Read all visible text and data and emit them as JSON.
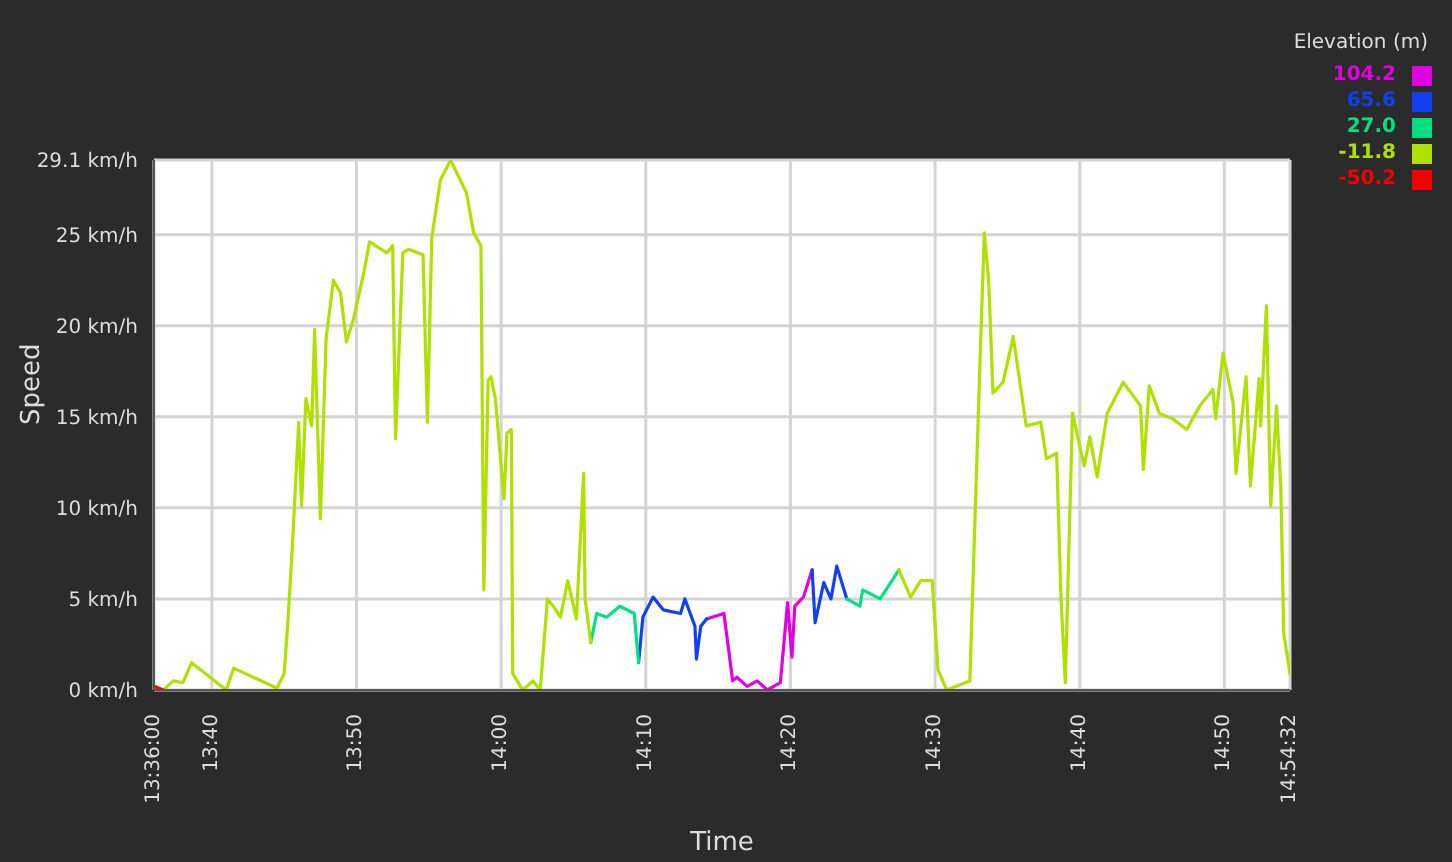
{
  "chart_data": {
    "type": "line",
    "xlabel": "Time",
    "ylabel": "Speed",
    "legend_title": "Elevation (m)",
    "legend": "top right",
    "grid": true,
    "line_style": "solid",
    "xlim": [
      13.6,
      14.9089
    ],
    "xticks": [
      {
        "value": 13.6,
        "label": "13:36:00"
      },
      {
        "value": 13.6667,
        "label": "13:40"
      },
      {
        "value": 13.8333,
        "label": "13:50"
      },
      {
        "value": 14,
        "label": "14:00"
      },
      {
        "value": 14.1667,
        "label": "14:10"
      },
      {
        "value": 14.3333,
        "label": "14:20"
      },
      {
        "value": 14.5,
        "label": "14:30"
      },
      {
        "value": 14.6667,
        "label": "14:40"
      },
      {
        "value": 14.8333,
        "label": "14:50"
      },
      {
        "value": 14.9089,
        "label": "14:54:32"
      }
    ],
    "ylim": [
      0,
      29.1
    ],
    "yticks": [
      {
        "value": 0,
        "label": "0 km/h"
      },
      {
        "value": 5,
        "label": "5 km/h"
      },
      {
        "value": 10,
        "label": "10 km/h"
      },
      {
        "value": 15,
        "label": "15 km/h"
      },
      {
        "value": 20,
        "label": "20 km/h"
      },
      {
        "value": 25,
        "label": "25 km/h"
      },
      {
        "value": 29.1,
        "label": "29.1 km/h"
      }
    ],
    "series": [
      {
        "name": "104.2",
        "color": "#e000e0",
        "x": [
          14.2367,
          14.2567,
          14.2667,
          14.2717,
          14.2833,
          14.295,
          14.3067,
          14.3217,
          14.33,
          14.335,
          14.3383,
          14.3483,
          14.3583
        ],
        "values": [
          3.9,
          4.2,
          0.5,
          0.7,
          0.2,
          0.5,
          0,
          0.4,
          4.8,
          1.8,
          4.6,
          5.1,
          6.6
        ]
      },
      {
        "name": "65.6",
        "color": "#1040f0",
        "x": [
          14.1583,
          14.1633,
          14.175,
          14.1867,
          14.2067,
          14.2117,
          14.2233,
          14.225,
          14.23,
          14.2367,
          14.3,
          14.3583,
          14.3617,
          14.3717,
          14.38,
          14.3867,
          14.3983
        ],
        "values": [
          1.5,
          4,
          5.1,
          4.4,
          4.2,
          5,
          3.5,
          1.7,
          3.5,
          3.9,
          null,
          6.6,
          3.7,
          5.9,
          5,
          6.8,
          5
        ]
      },
      {
        "name": "27.0",
        "color": "#00e080",
        "x": [
          14.1033,
          14.11,
          14.1217,
          14.1367,
          14.1533,
          14.1583,
          14.3,
          14.3983,
          14.4133,
          14.4167,
          14.4367,
          14.4583
        ],
        "values": [
          2.6,
          4.2,
          4,
          4.6,
          4.2,
          1.5,
          null,
          5,
          4.6,
          5.5,
          5,
          6.6
        ]
      },
      {
        "name": "-11.8",
        "color": "#b0e000",
        "x": [
          13.6108,
          13.6223,
          13.6333,
          13.6433,
          13.6833,
          13.6917,
          13.7417,
          13.75,
          13.7545,
          13.76,
          13.7667,
          13.77,
          13.775,
          13.7817,
          13.785,
          13.7917,
          13.7983,
          13.8067,
          13.815,
          13.8217,
          13.83,
          13.8417,
          13.8483,
          13.8683,
          13.875,
          13.8783,
          13.8867,
          13.8933,
          13.91,
          13.915,
          13.92,
          13.93,
          13.9417,
          13.96,
          13.9683,
          13.9767,
          13.98,
          13.985,
          13.9883,
          13.9933,
          14.0033,
          14.0067,
          14.0117,
          14.0133,
          14.025,
          14.0367,
          14.045,
          14.0533,
          14.06,
          14.0683,
          14.0767,
          14.0867,
          14.095,
          14.0967,
          14.1033,
          14.3,
          14.4583,
          14.4717,
          14.4833,
          14.4967,
          14.5033,
          14.5133,
          14.54,
          14.5517,
          14.5567,
          14.5617,
          14.5667,
          14.5783,
          14.59,
          14.605,
          14.6217,
          14.6283,
          14.64,
          14.645,
          14.65,
          14.6583,
          14.6717,
          14.6783,
          14.6867,
          14.6983,
          14.7167,
          14.7367,
          14.74,
          14.7467,
          14.7583,
          14.7733,
          14.79,
          14.805,
          14.82,
          14.8233,
          14.8317,
          14.8433,
          14.8467,
          14.8583,
          14.8633,
          14.8733,
          14.875,
          14.8817,
          14.8867,
          14.8933,
          14.8983,
          14.9017,
          14.9089
        ],
        "values": [
          0,
          0.5,
          0.4,
          1.5,
          0,
          1.2,
          0.1,
          0.9,
          3.9,
          8.4,
          14.7,
          10.1,
          16,
          14.5,
          19.8,
          9.4,
          19.3,
          22.5,
          21.8,
          19.1,
          20.4,
          22.9,
          24.6,
          24,
          24.4,
          13.8,
          24,
          24.2,
          23.9,
          14.7,
          24.8,
          28,
          29.1,
          27.3,
          25.1,
          24.4,
          5.5,
          17,
          17.2,
          16,
          10.5,
          14.1,
          14.3,
          0.9,
          0,
          0.5,
          0,
          5,
          4.6,
          4,
          6,
          3.9,
          11.9,
          5,
          2.6,
          null,
          6.6,
          5.1,
          6,
          6,
          1.1,
          0,
          0.5,
          18,
          25.1,
          22.5,
          16.3,
          16.9,
          19.4,
          14.5,
          14.7,
          12.7,
          13,
          5.1,
          0.4,
          15.2,
          12.3,
          13.9,
          11.7,
          15.2,
          16.9,
          15.6,
          12.1,
          16.7,
          15.2,
          14.9,
          14.3,
          15.6,
          16.5,
          14.9,
          18.5,
          15.8,
          11.9,
          17.2,
          11.2,
          17.1,
          14.5,
          21.1,
          10.1,
          15.6,
          11.2,
          3.1,
          0.9
        ]
      },
      {
        "name": "-50.2",
        "color": "#f00000",
        "x": [
          13.6,
          13.6108
        ],
        "values": [
          0.2,
          0
        ]
      }
    ]
  }
}
